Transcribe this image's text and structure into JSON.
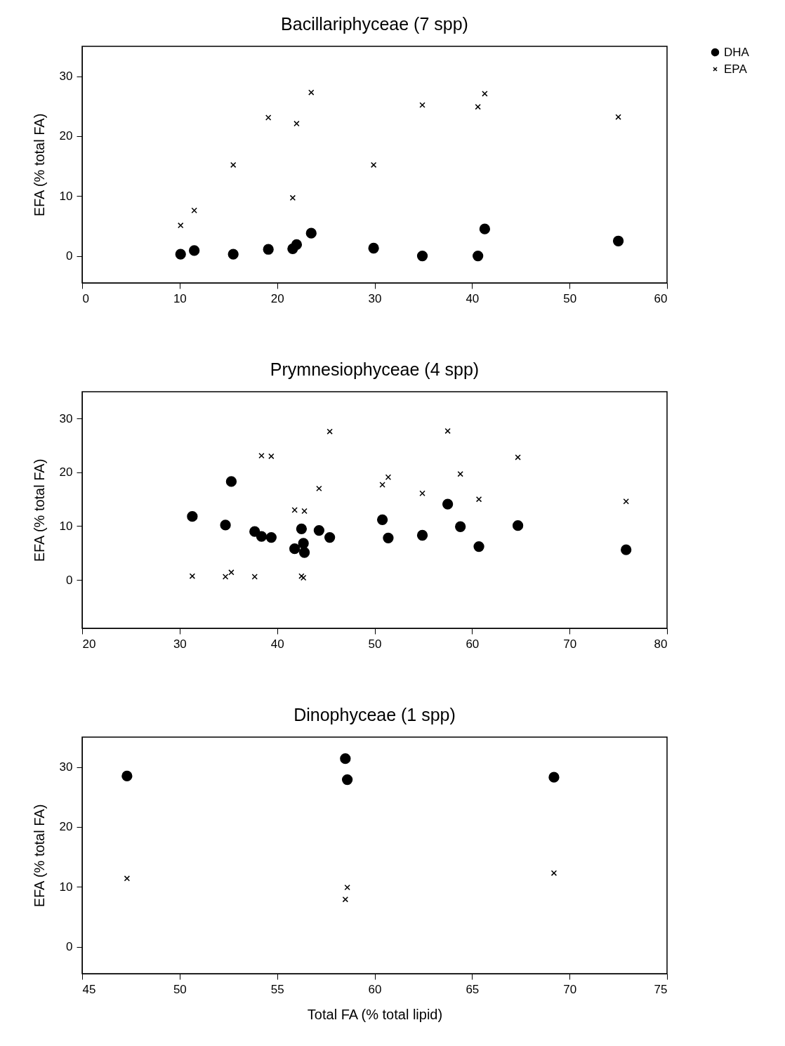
{
  "chart_data": [
    {
      "type": "scatter",
      "title": "Bacillariphyceae (7 spp)",
      "ylabel": "EFA (% total FA)",
      "xlim": [
        0,
        60
      ],
      "xticks": [
        0,
        10,
        20,
        30,
        40,
        50,
        60
      ],
      "ylim": [
        -4.5,
        35
      ],
      "yticks": [
        0,
        10,
        20,
        30
      ],
      "grid": false,
      "legend": "right",
      "series": [
        {
          "name": "DHA",
          "color": "#000000",
          "marker": "circle",
          "x": [
            10.1,
            11.5,
            15.5,
            19.1,
            21.6,
            22.0,
            23.5,
            29.9,
            34.9,
            40.6,
            41.3,
            55.0
          ],
          "values": [
            0.3,
            0.9,
            0.3,
            1.1,
            1.2,
            1.9,
            3.8,
            1.3,
            0,
            0,
            4.5,
            2.5
          ]
        },
        {
          "name": "EPA",
          "color": "#000000",
          "marker": "cross",
          "x": [
            10.1,
            11.5,
            15.5,
            19.1,
            21.6,
            22.0,
            23.5,
            29.9,
            34.9,
            40.6,
            41.3,
            55.0
          ],
          "values": [
            5.1,
            7.6,
            15.2,
            23.1,
            9.7,
            22.1,
            27.3,
            15.2,
            25.2,
            24.9,
            27.1,
            23.2
          ]
        }
      ]
    },
    {
      "type": "scatter",
      "title": "Prymnesiophyceae (4 spp)",
      "ylabel": "EFA (% total FA)",
      "xlim": [
        20,
        80
      ],
      "xticks": [
        20,
        30,
        40,
        50,
        60,
        70,
        80
      ],
      "ylim": [
        -9,
        35
      ],
      "yticks": [
        0,
        10,
        20,
        30
      ],
      "grid": false,
      "series": [
        {
          "color": "#000000",
          "marker": "circle",
          "x": [
            31.3,
            34.7,
            35.3,
            37.7,
            38.4,
            39.4,
            41.8,
            42.5,
            42.7,
            42.8,
            44.3,
            45.4,
            50.8,
            51.4,
            54.9,
            57.5,
            58.8,
            60.7,
            64.7,
            75.8
          ],
          "values": [
            11.8,
            10.2,
            18.3,
            9.0,
            8.1,
            7.9,
            5.8,
            9.5,
            6.8,
            5.1,
            9.2,
            7.9,
            11.2,
            7.8,
            8.3,
            14.1,
            9.9,
            6.2,
            10.1,
            5.6
          ]
        },
        {
          "color": "#000000",
          "marker": "cross",
          "x": [
            31.3,
            34.7,
            35.3,
            37.7,
            38.4,
            39.4,
            41.8,
            42.5,
            42.7,
            42.8,
            44.3,
            45.4,
            50.8,
            51.4,
            54.9,
            57.5,
            58.8,
            60.7,
            64.7,
            75.8
          ],
          "values": [
            0.7,
            0.6,
            1.4,
            0.6,
            23.1,
            23.0,
            13.0,
            0.7,
            0.4,
            12.8,
            17.0,
            27.6,
            17.7,
            19.1,
            16.1,
            27.7,
            19.7,
            15.0,
            22.8,
            14.6
          ]
        }
      ]
    },
    {
      "type": "scatter",
      "title": "Dinophyceae (1 spp)",
      "xlabel": "Total FA (% total lipid)",
      "ylabel": "EFA (% total FA)",
      "xlim": [
        45,
        75
      ],
      "xticks": [
        45,
        50,
        55,
        60,
        65,
        70,
        75
      ],
      "ylim": [
        -4.5,
        35
      ],
      "yticks": [
        0,
        10,
        20,
        30
      ],
      "grid": false,
      "series": [
        {
          "color": "#000000",
          "marker": "circle",
          "x": [
            47.3,
            58.5,
            58.6,
            69.2
          ],
          "values": [
            28.5,
            31.4,
            27.9,
            28.3
          ]
        },
        {
          "color": "#000000",
          "marker": "cross",
          "x": [
            47.3,
            58.5,
            58.6,
            69.2
          ],
          "values": [
            11.4,
            7.9,
            9.9,
            12.3
          ]
        }
      ]
    }
  ]
}
